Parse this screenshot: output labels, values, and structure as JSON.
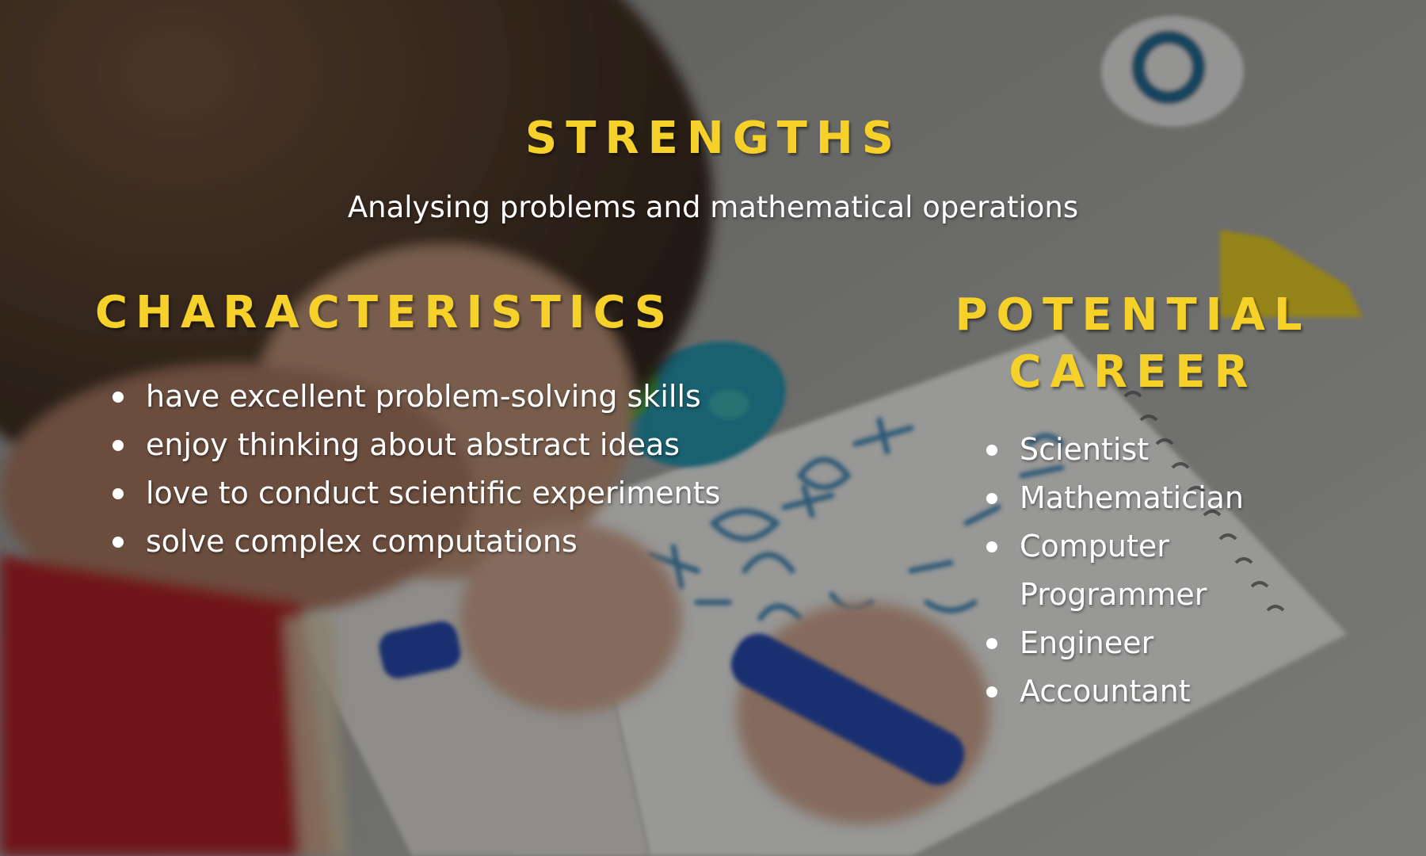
{
  "strengths": {
    "title": "STRENGTHS",
    "subtitle": "Analysing problems and mathematical operations"
  },
  "characteristics": {
    "title": "CHARACTERISTICS",
    "items": [
      "have excellent problem-solving skills",
      "enjoy thinking about abstract ideas",
      "love to conduct scientific experiments",
      "solve complex computations"
    ]
  },
  "career": {
    "title": "POTENTIAL CAREER",
    "items": [
      "Scientist",
      "Mathematician",
      "Computer Programmer",
      "Engineer",
      "Accountant"
    ]
  },
  "colors": {
    "heading": "#f6d12a",
    "body_text": "#ffffff"
  },
  "background": {
    "description_icon": "child-doing-math-photo"
  }
}
